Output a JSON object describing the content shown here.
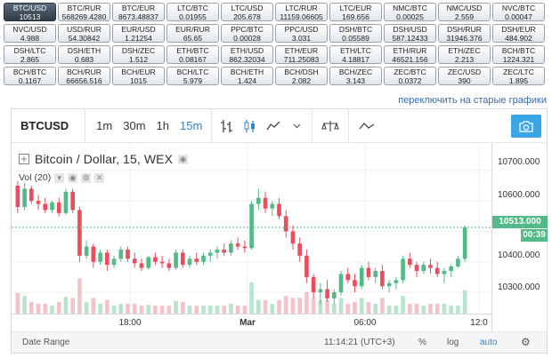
{
  "pairs": [
    [
      [
        "BTC/USD",
        "10513"
      ],
      [
        "BTC/RUR",
        "568269.4280"
      ],
      [
        "BTC/EUR",
        "8673.48837"
      ],
      [
        "LTC/BTC",
        "0.01955"
      ],
      [
        "LTC/USD",
        "205.678"
      ],
      [
        "LTC/RUR",
        "11159.06605"
      ],
      [
        "LTC/EUR",
        "169.656"
      ],
      [
        "NMC/BTC",
        "0.00025"
      ],
      [
        "NMC/USD",
        "2.559"
      ],
      [
        "NVC/BTC",
        "0.00047"
      ]
    ],
    [
      [
        "NVC/USD",
        "4.988"
      ],
      [
        "USD/RUR",
        "54.30842"
      ],
      [
        "EUR/USD",
        "1.21254"
      ],
      [
        "EUR/RUR",
        "65.65"
      ],
      [
        "PPC/BTC",
        "0.00028"
      ],
      [
        "PPC/USD",
        "3.031"
      ],
      [
        "DSH/BTC",
        "0.05589"
      ],
      [
        "DSH/USD",
        "587.12433"
      ],
      [
        "DSH/RUR",
        "31946.376"
      ],
      [
        "DSH/EUR",
        "484.902"
      ]
    ],
    [
      [
        "DSH/LTC",
        "2.865"
      ],
      [
        "DSH/ETH",
        "0.683"
      ],
      [
        "DSH/ZEC",
        "1.512"
      ],
      [
        "ETH/BTC",
        "0.08167"
      ],
      [
        "ETH/USD",
        "862.32034"
      ],
      [
        "ETH/EUR",
        "711.25083"
      ],
      [
        "ETH/LTC",
        "4.18817"
      ],
      [
        "ETH/RUR",
        "46521.156"
      ],
      [
        "ETH/ZEC",
        "2.213"
      ],
      [
        "BCH/BTC",
        "1224.321"
      ]
    ],
    [
      [
        "BCH/BTC",
        "0.1167"
      ],
      [
        "BCH/RUR",
        "66656.516"
      ],
      [
        "BCH/EUR",
        "1015"
      ],
      [
        "BCH/LTC",
        "5.979"
      ],
      [
        "BCH/ETH",
        "1.424"
      ],
      [
        "BCH/DSH",
        "2.082"
      ],
      [
        "BCH/ZEC",
        "3.143"
      ],
      [
        "ZEC/BTC",
        "0.0372"
      ],
      [
        "ZEC/USD",
        "390"
      ],
      [
        "ZEC/LTC",
        "1.895"
      ]
    ]
  ],
  "old_link": "переключить на старые графики",
  "toolbar": {
    "symbol": "BTCUSD",
    "intervals": [
      "1m",
      "30m",
      "1h",
      "15m"
    ],
    "active_interval": "15m"
  },
  "legend": {
    "title": "Bitcoin / Dollar, 15, WEX",
    "volume": "Vol (20)"
  },
  "price_scale": {
    "labels": [
      "10700.000",
      "10600.000",
      "10400.000",
      "10300.000"
    ],
    "last_price": "10513.000",
    "countdown": "00:39"
  },
  "time_axis": [
    "18:00",
    "Mar",
    "06:00",
    "12:0"
  ],
  "bottom": {
    "date_range": "Date Range",
    "clock": "11:14:21 (UTC+3)",
    "percent": "%",
    "log": "log",
    "auto": "auto"
  },
  "colors": {
    "up": "#53b987",
    "down": "#eb4d5c",
    "accent": "#2f84d6",
    "active_pair": "#3b4755"
  },
  "chart_data": {
    "type": "candlestick",
    "series": [
      {
        "name": "Bitcoin / Dollar, 15, WEX",
        "ohlc": [
          [
            10650,
            10665,
            10560,
            10580
          ],
          [
            10580,
            10660,
            10570,
            10640
          ],
          [
            10640,
            10650,
            10590,
            10600
          ],
          [
            10600,
            10620,
            10570,
            10590
          ],
          [
            10590,
            10610,
            10560,
            10570
          ],
          [
            10570,
            10600,
            10560,
            10595
          ],
          [
            10595,
            10610,
            10550,
            10560
          ],
          [
            10560,
            10640,
            10555,
            10630
          ],
          [
            10630,
            10640,
            10560,
            10570
          ],
          [
            10570,
            10580,
            10400,
            10420
          ],
          [
            10420,
            10470,
            10410,
            10450
          ],
          [
            10450,
            10460,
            10380,
            10400
          ],
          [
            10400,
            10440,
            10390,
            10430
          ],
          [
            10430,
            10440,
            10370,
            10390
          ],
          [
            10390,
            10420,
            10380,
            10410
          ],
          [
            10410,
            10450,
            10400,
            10440
          ],
          [
            10440,
            10450,
            10400,
            10410
          ],
          [
            10410,
            10430,
            10380,
            10395
          ],
          [
            10395,
            10410,
            10370,
            10380
          ],
          [
            10380,
            10420,
            10375,
            10415
          ],
          [
            10415,
            10430,
            10390,
            10400
          ],
          [
            10400,
            10420,
            10380,
            10395
          ],
          [
            10395,
            10410,
            10370,
            10380
          ],
          [
            10380,
            10440,
            10375,
            10430
          ],
          [
            10430,
            10440,
            10380,
            10390
          ],
          [
            10390,
            10420,
            10380,
            10410
          ],
          [
            10410,
            10430,
            10390,
            10400
          ],
          [
            10400,
            10430,
            10390,
            10420
          ],
          [
            10420,
            10440,
            10400,
            10430
          ],
          [
            10430,
            10450,
            10410,
            10440
          ],
          [
            10440,
            10460,
            10420,
            10430
          ],
          [
            10430,
            10470,
            10420,
            10460
          ],
          [
            10460,
            10480,
            10440,
            10450
          ],
          [
            10450,
            10470,
            10430,
            10445
          ],
          [
            10445,
            10600,
            10440,
            10590
          ],
          [
            10590,
            10640,
            10570,
            10610
          ],
          [
            10610,
            10630,
            10560,
            10575
          ],
          [
            10575,
            10600,
            10550,
            10590
          ],
          [
            10590,
            10610,
            10540,
            10550
          ],
          [
            10550,
            10570,
            10480,
            10500
          ],
          [
            10500,
            10520,
            10440,
            10460
          ],
          [
            10460,
            10480,
            10400,
            10420
          ],
          [
            10420,
            10440,
            10330,
            10350
          ],
          [
            10350,
            10360,
            10280,
            10300
          ],
          [
            10300,
            10330,
            10260,
            10310
          ],
          [
            10310,
            10340,
            10270,
            10280
          ],
          [
            10280,
            10310,
            10260,
            10300
          ],
          [
            10300,
            10370,
            10290,
            10360
          ],
          [
            10360,
            10380,
            10330,
            10340
          ],
          [
            10340,
            10360,
            10300,
            10320
          ],
          [
            10320,
            10390,
            10310,
            10380
          ],
          [
            10380,
            10400,
            10340,
            10350
          ],
          [
            10350,
            10380,
            10330,
            10370
          ],
          [
            10370,
            10390,
            10310,
            10320
          ],
          [
            10320,
            10340,
            10300,
            10330
          ],
          [
            10330,
            10350,
            10310,
            10340
          ],
          [
            10340,
            10420,
            10330,
            10410
          ],
          [
            10410,
            10430,
            10380,
            10390
          ],
          [
            10390,
            10400,
            10350,
            10370
          ],
          [
            10370,
            10400,
            10360,
            10390
          ],
          [
            10390,
            10410,
            10360,
            10380
          ],
          [
            10380,
            10400,
            10350,
            10360
          ],
          [
            10360,
            10380,
            10330,
            10370
          ],
          [
            10370,
            10390,
            10350,
            10385
          ],
          [
            10385,
            10420,
            10380,
            10410
          ],
          [
            10410,
            10520,
            10400,
            10513
          ]
        ]
      }
    ],
    "ylim": [
      10230,
      10790
    ],
    "volume_label": "Vol (20)",
    "grid": true
  }
}
